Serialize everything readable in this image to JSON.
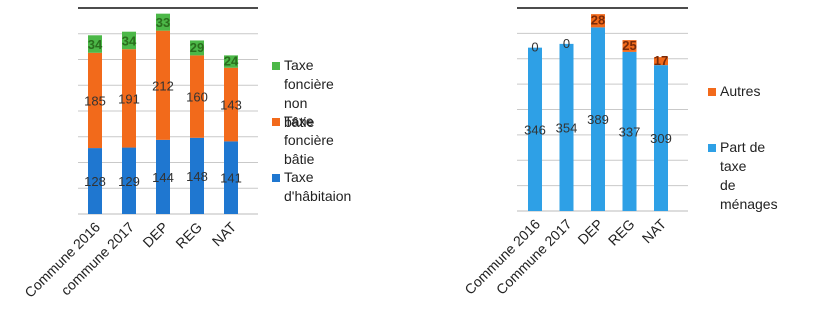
{
  "chart_data": [
    {
      "type": "bar",
      "stacked": true,
      "title": "",
      "xlabel": "",
      "ylabel": "",
      "categories": [
        "Commune 2016",
        "commune 2017",
        "DEP",
        "REG",
        "NAT"
      ],
      "series": [
        {
          "name": "Taxe d'hâbitaion",
          "color": "#1f77d0",
          "values": [
            128,
            129,
            144,
            148,
            141
          ]
        },
        {
          "name": "Taxe foncière\nbâtie",
          "color": "#f26a1b",
          "values": [
            185,
            191,
            212,
            160,
            143
          ]
        },
        {
          "name": "Taxe foncière\nnon bâtie",
          "color": "#4cb848",
          "values": [
            34,
            34,
            33,
            29,
            24
          ]
        }
      ],
      "legend_order": [
        2,
        1,
        0
      ],
      "legend_position": "right",
      "grid": true
    },
    {
      "type": "bar",
      "stacked": true,
      "title": "",
      "xlabel": "",
      "ylabel": "",
      "categories": [
        "Commune 2016",
        "Commune 2017",
        "DEP",
        "REG",
        "NAT"
      ],
      "series": [
        {
          "name": "Part de taxe\nde ménages",
          "color": "#2ea0e6",
          "values": [
            346,
            354,
            389,
            337,
            309
          ]
        },
        {
          "name": "Autres",
          "color": "#f26a1b",
          "values": [
            0,
            0,
            28,
            25,
            17
          ]
        }
      ],
      "legend_order": [
        1,
        0
      ],
      "legend_position": "right",
      "grid": true
    }
  ]
}
